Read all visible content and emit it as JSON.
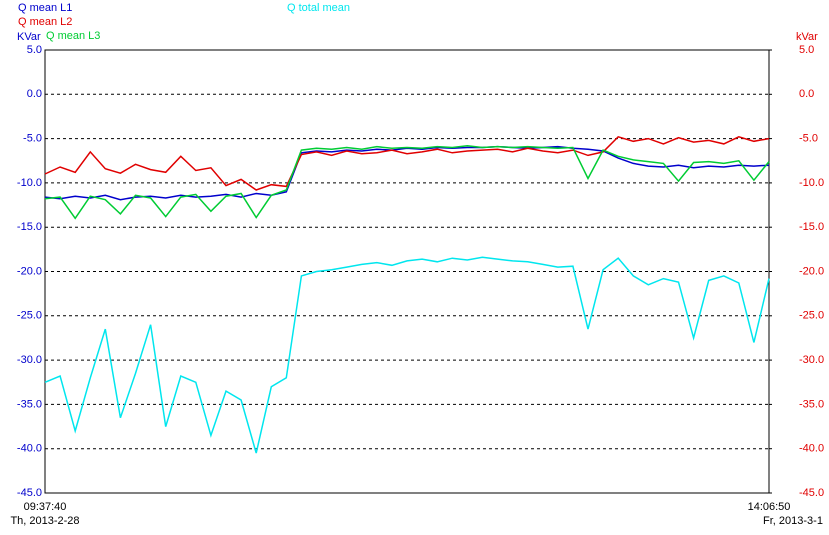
{
  "chart_data": {
    "type": "line",
    "y_label": "KVar",
    "y2_label": "kVar",
    "y_color": "#0000cc",
    "y2_color": "#e00000",
    "categories": [
      "09:37:40",
      null,
      null,
      null,
      null,
      null,
      null,
      null,
      null,
      null,
      null,
      null,
      null,
      null,
      null,
      null,
      null,
      null,
      null,
      null,
      null,
      null,
      null,
      null,
      null,
      null,
      null,
      null,
      null,
      null,
      null,
      null,
      null,
      null,
      null,
      null,
      null,
      null,
      null,
      null,
      null,
      null,
      null,
      null,
      null,
      null,
      null,
      null,
      "14:06:50"
    ],
    "category_dates": [
      "Th, 2013-2-28",
      null,
      null,
      null,
      null,
      null,
      null,
      null,
      null,
      null,
      null,
      null,
      null,
      null,
      null,
      null,
      null,
      null,
      null,
      null,
      null,
      null,
      null,
      null,
      null,
      null,
      null,
      null,
      null,
      null,
      null,
      null,
      null,
      null,
      null,
      null,
      null,
      null,
      null,
      null,
      null,
      null,
      null,
      null,
      null,
      null,
      null,
      null,
      "Fr, 2013-3-1"
    ],
    "series": [
      {
        "name": "Q total mean",
        "color": "#00e6ee",
        "values": [
          -32.5,
          -31.8,
          -38.0,
          -32.0,
          -26.5,
          -36.5,
          -31.5,
          -26.0,
          -37.5,
          -31.8,
          -32.5,
          -38.5,
          -33.5,
          -34.5,
          -40.5,
          -33.0,
          -32.0,
          -20.5,
          -20.0,
          -19.8,
          -19.5,
          -19.2,
          -19.0,
          -19.3,
          -18.8,
          -18.6,
          -18.9,
          -18.5,
          -18.7,
          -18.4,
          -18.6,
          -18.8,
          -18.9,
          -19.2,
          -19.5,
          -19.4,
          -26.5,
          -19.8,
          -18.5,
          -20.5,
          -21.5,
          -20.8,
          -21.2,
          -27.5,
          -21.0,
          -20.5,
          -21.3,
          -28.0,
          -20.8
        ]
      },
      {
        "name": "Q mean L1",
        "color": "#0000cc",
        "values": [
          -11.6,
          -11.8,
          -11.5,
          -11.7,
          -11.4,
          -11.9,
          -11.6,
          -11.5,
          -11.7,
          -11.4,
          -11.6,
          -11.5,
          -11.3,
          -11.6,
          -11.2,
          -11.4,
          -11.0,
          -6.6,
          -6.4,
          -6.5,
          -6.3,
          -6.4,
          -6.2,
          -6.3,
          -6.1,
          -6.2,
          -6.0,
          -6.1,
          -6.0,
          -6.0,
          -5.9,
          -6.0,
          -6.1,
          -6.0,
          -5.9,
          -6.1,
          -6.2,
          -6.4,
          -7.2,
          -7.8,
          -8.1,
          -8.2,
          -8.0,
          -8.3,
          -8.1,
          -8.2,
          -8.0,
          -8.1,
          -8.0
        ]
      },
      {
        "name": "Q mean L2",
        "color": "#e00000",
        "values": [
          -9.0,
          -8.2,
          -8.8,
          -6.5,
          -8.4,
          -8.9,
          -7.9,
          -8.5,
          -8.8,
          -7.0,
          -8.6,
          -8.3,
          -10.3,
          -9.6,
          -10.8,
          -10.2,
          -10.4,
          -6.8,
          -6.5,
          -6.9,
          -6.4,
          -6.7,
          -6.6,
          -6.3,
          -6.7,
          -6.5,
          -6.2,
          -6.6,
          -6.4,
          -6.3,
          -6.2,
          -6.5,
          -6.1,
          -6.4,
          -6.6,
          -6.3,
          -6.9,
          -6.5,
          -4.8,
          -5.3,
          -5.0,
          -5.6,
          -4.9,
          -5.4,
          -5.2,
          -5.6,
          -4.8,
          -5.3,
          -5.0
        ]
      },
      {
        "name": "Q mean L3",
        "color": "#00cc33",
        "values": [
          -11.8,
          -11.6,
          -14.0,
          -11.5,
          -11.9,
          -13.5,
          -11.4,
          -11.7,
          -13.8,
          -11.6,
          -11.3,
          -13.2,
          -11.5,
          -11.2,
          -13.9,
          -11.4,
          -10.8,
          -6.3,
          -6.1,
          -6.2,
          -6.0,
          -6.2,
          -5.9,
          -6.1,
          -6.0,
          -6.1,
          -5.9,
          -6.0,
          -5.8,
          -6.0,
          -5.9,
          -6.0,
          -5.9,
          -6.0,
          -6.1,
          -6.0,
          -9.5,
          -6.3,
          -7.0,
          -7.4,
          -7.6,
          -7.8,
          -9.8,
          -7.7,
          -7.6,
          -7.8,
          -7.5,
          -9.7,
          -7.6
        ]
      }
    ],
    "ylim": [
      -45,
      5
    ],
    "yticks": [
      {
        "value": 5,
        "label": "5.0"
      },
      {
        "value": 0,
        "label": "0.0"
      },
      {
        "value": -5,
        "label": "-5.0"
      },
      {
        "value": -10,
        "label": "-10.0"
      },
      {
        "value": -15,
        "label": "-15.0"
      },
      {
        "value": -20,
        "label": "-20.0"
      },
      {
        "value": -25,
        "label": "-25.0"
      },
      {
        "value": -30,
        "label": "-30.0"
      },
      {
        "value": -35,
        "label": "-35.0"
      },
      {
        "value": -40,
        "label": "-40.0"
      },
      {
        "value": -45,
        "label": "-45.0"
      }
    ],
    "y2lim": [
      -45,
      5
    ],
    "y2ticks": [
      {
        "value": 5,
        "label": "5.0"
      },
      {
        "value": 0,
        "label": "0.0"
      },
      {
        "value": -5,
        "label": "-5.0"
      },
      {
        "value": -10,
        "label": "-10.0"
      },
      {
        "value": -15,
        "label": "-15.0"
      },
      {
        "value": -20,
        "label": "-20.0"
      },
      {
        "value": -25,
        "label": "-25.0"
      },
      {
        "value": -30,
        "label": "-30.0"
      },
      {
        "value": -35,
        "label": "-35.0"
      },
      {
        "value": -40,
        "label": "-40.0"
      },
      {
        "value": -45,
        "label": "-45.0"
      }
    ],
    "grid": true
  }
}
